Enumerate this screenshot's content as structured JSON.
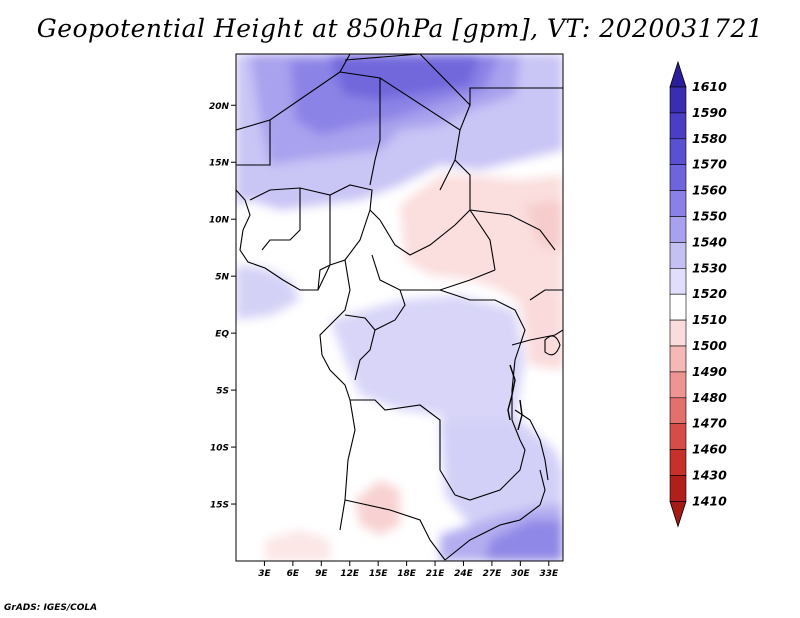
{
  "title": "Geopotential Height at 850hPa [gpm], VT: 2020031721",
  "credit": "GrADS: IGES/COLA",
  "map": {
    "lat_labels": [
      "20N",
      "15N",
      "10N",
      "5N",
      "EQ",
      "5S",
      "10S",
      "15S"
    ],
    "lat_values": [
      20,
      15,
      10,
      5,
      0,
      -5,
      -10,
      -15
    ],
    "lon_labels": [
      "3E",
      "6E",
      "9E",
      "12E",
      "15E",
      "18E",
      "21E",
      "24E",
      "27E",
      "30E",
      "33E"
    ],
    "lon_values": [
      3,
      6,
      9,
      12,
      15,
      18,
      21,
      24,
      27,
      30,
      33
    ],
    "lon_range": [
      0,
      34.5
    ],
    "lat_range": [
      -20,
      24.5
    ]
  },
  "colorbar": {
    "labels": [
      "1610",
      "1590",
      "1580",
      "1570",
      "1560",
      "1550",
      "1540",
      "1530",
      "1520",
      "1510",
      "1500",
      "1490",
      "1480",
      "1470",
      "1460",
      "1430",
      "1410"
    ],
    "colors": [
      "#2a1e9c",
      "#3a2eb0",
      "#4a3ec4",
      "#5a50d2",
      "#6e64dc",
      "#8a80e6",
      "#a8a2ee",
      "#c4c0f4",
      "#e0defa",
      "#ffffff",
      "#fbdcdc",
      "#f4b8b6",
      "#ec9592",
      "#e2706c",
      "#d64c46",
      "#c8302a",
      "#b01f1a"
    ],
    "top_arrow_color": "#2a1e9c",
    "bottom_arrow_color": "#a51a14"
  }
}
